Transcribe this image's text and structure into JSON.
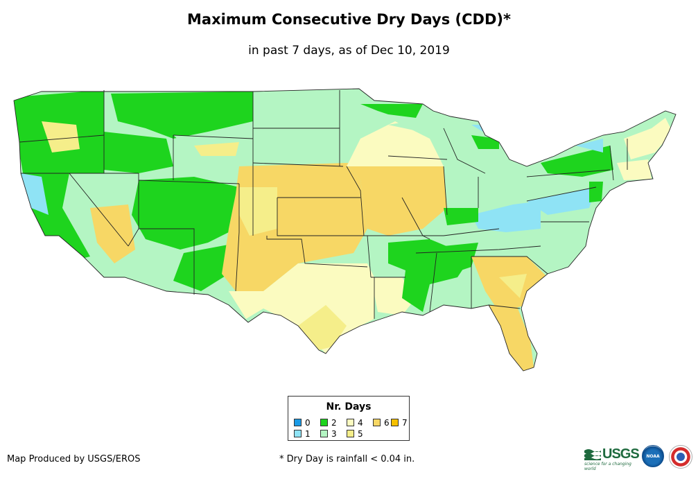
{
  "header": {
    "title": "Maximum Consecutive Dry Days (CDD)*",
    "subtitle": "in past 7 days, as of Dec 10, 2019"
  },
  "legend": {
    "title": "Nr. Days",
    "items": [
      {
        "label": "0",
        "color": "#1a9ae6"
      },
      {
        "label": "1",
        "color": "#8fe3f5"
      },
      {
        "label": "2",
        "color": "#1ed41e"
      },
      {
        "label": "3",
        "color": "#b4f5c3"
      },
      {
        "label": "4",
        "color": "#fbfbc0"
      },
      {
        "label": "5",
        "color": "#f5ee8a"
      },
      {
        "label": "6",
        "color": "#f7d765"
      },
      {
        "label": "7",
        "color": "#f5c000"
      }
    ]
  },
  "footer": {
    "producer": "Map Produced by USGS/EROS",
    "note": "* Dry Day is rainfall < 0.04 in."
  },
  "logos": {
    "usgs": "USGS",
    "usgs_tagline": "science for a changing world",
    "noaa": "NOAA"
  }
}
